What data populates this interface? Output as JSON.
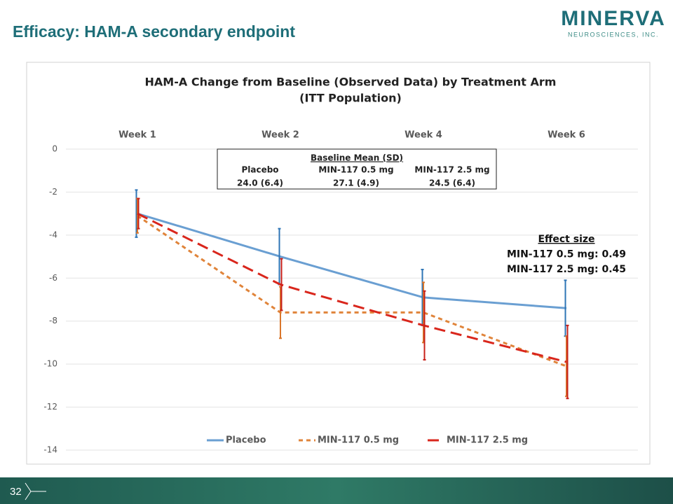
{
  "header": {
    "title": "Efficacy: HAM-A secondary endpoint",
    "logo": "MINERVA",
    "logo_sub": "NEUROSCIENCES, INC."
  },
  "footer": {
    "page": "32"
  },
  "chart_data": {
    "type": "line",
    "title": "HAM-A Change from Baseline (Observed Data) by Treatment Arm",
    "subtitle": "(ITT Population)",
    "categories": [
      "Week 1",
      "Week 2",
      "Week 4",
      "Week 6"
    ],
    "series": [
      {
        "name": "Placebo",
        "color": "#6a9fd2",
        "error_color": "#2e75b6",
        "line_style": "solid",
        "values": [
          -3.0,
          -5.0,
          -6.9,
          -7.4
        ],
        "errors": [
          1.1,
          1.3,
          1.3,
          1.3
        ]
      },
      {
        "name": "MIN-117 0.5 mg",
        "color": "#e0843a",
        "error_color": "#d9762b",
        "line_style": "short-dash",
        "values": [
          -3.1,
          -7.6,
          -7.6,
          -10.1
        ],
        "errors": [
          0.8,
          1.2,
          1.4,
          1.4
        ]
      },
      {
        "name": "MIN-117 2.5 mg",
        "color": "#d9261c",
        "error_color": "#c8201a",
        "line_style": "long-dash",
        "values": [
          -3.0,
          -6.3,
          -8.2,
          -9.9
        ],
        "errors": [
          0.7,
          1.2,
          1.6,
          1.7
        ]
      }
    ],
    "ylim": [
      -14,
      0
    ],
    "yticks": [
      0,
      -2,
      -4,
      -6,
      -8,
      -10,
      -12,
      -14
    ],
    "grid": true,
    "legend": "bottom",
    "baseline_table": {
      "title": "Baseline Mean (SD)",
      "headers": [
        "Placebo",
        "MIN-117 0.5 mg",
        "MIN-117 2.5 mg"
      ],
      "values": [
        "24.0 (6.4)",
        "27.1 (4.9)",
        "24.5 (6.4)"
      ]
    },
    "annotations": [
      "Effect size",
      "MIN-117 0.5 mg: 0.49",
      "MIN-117 2.5 mg: 0.45"
    ]
  }
}
